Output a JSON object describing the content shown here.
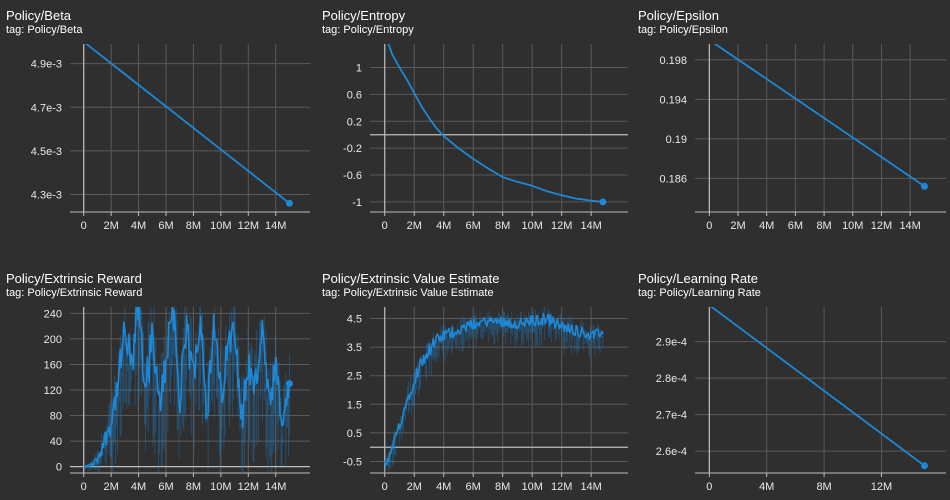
{
  "colors": {
    "background": "#2f2f2f",
    "grid": "#5a5a5a",
    "axis": "#bdbdbd",
    "series": "#1e88d6",
    "text": "#e8e8e8"
  },
  "panels": [
    {
      "title": "Policy/Beta",
      "tag": "tag: Policy/Beta",
      "chart_data": {
        "type": "line",
        "title": "Policy/Beta",
        "xlim": [
          -1000000,
          16500000
        ],
        "ylim": [
          0.00422,
          0.00499
        ],
        "xticks": [
          0,
          2000000,
          4000000,
          6000000,
          8000000,
          10000000,
          12000000,
          14000000
        ],
        "xtick_labels": [
          "0",
          "2M",
          "4M",
          "6M",
          "8M",
          "10M",
          "12M",
          "14M"
        ],
        "yticks": [
          0.0043,
          0.0045,
          0.0047,
          0.0049
        ],
        "ytick_labels": [
          "4.3e-3",
          "4.5e-3",
          "4.7e-3",
          "4.9e-3"
        ],
        "grid": true,
        "zero_line": false,
        "noisy": false,
        "series": [
          {
            "x": [
              0,
              15000000
            ],
            "y": [
              0.005,
              0.00426
            ]
          }
        ],
        "end_marker": true
      }
    },
    {
      "title": "Policy/Entropy",
      "tag": "tag: Policy/Entropy",
      "chart_data": {
        "type": "line",
        "title": "Policy/Entropy",
        "xlim": [
          -1000000,
          16500000
        ],
        "ylim": [
          -1.15,
          1.35
        ],
        "xticks": [
          0,
          2000000,
          4000000,
          6000000,
          8000000,
          10000000,
          12000000,
          14000000
        ],
        "xtick_labels": [
          "0",
          "2M",
          "4M",
          "6M",
          "8M",
          "10M",
          "12M",
          "14M"
        ],
        "yticks": [
          -1,
          -0.6,
          -0.2,
          0.2,
          0.6,
          1
        ],
        "ytick_labels": [
          "-1",
          "-0.6",
          "-0.2",
          "0.2",
          "0.6",
          "1"
        ],
        "grid": true,
        "zero_line": true,
        "noisy": false,
        "series": [
          {
            "x": [
              0,
              250000,
              500000,
              750000,
              1000000,
              1500000,
              2000000,
              2500000,
              3000000,
              3500000,
              4000000,
              5000000,
              6000000,
              7000000,
              8000000,
              9000000,
              10000000,
              11000000,
              12000000,
              13000000,
              14000000,
              14800000
            ],
            "y": [
              1.55,
              1.35,
              1.2,
              1.1,
              1.0,
              0.82,
              0.62,
              0.42,
              0.25,
              0.1,
              -0.02,
              -0.2,
              -0.36,
              -0.5,
              -0.63,
              -0.7,
              -0.76,
              -0.84,
              -0.9,
              -0.95,
              -0.98,
              -1.0
            ]
          }
        ],
        "end_marker": true
      }
    },
    {
      "title": "Policy/Epsilon",
      "tag": "tag: Policy/Epsilon",
      "chart_data": {
        "type": "line",
        "title": "Policy/Epsilon",
        "xlim": [
          -1000000,
          16500000
        ],
        "ylim": [
          0.1826,
          0.1996
        ],
        "xticks": [
          0,
          2000000,
          4000000,
          6000000,
          8000000,
          10000000,
          12000000,
          14000000
        ],
        "xtick_labels": [
          "0",
          "2M",
          "4M",
          "6M",
          "8M",
          "10M",
          "12M",
          "14M"
        ],
        "yticks": [
          0.186,
          0.19,
          0.194,
          0.198
        ],
        "ytick_labels": [
          "0.186",
          "0.19",
          "0.194",
          "0.198"
        ],
        "grid": true,
        "zero_line": false,
        "noisy": false,
        "series": [
          {
            "x": [
              0,
              15000000
            ],
            "y": [
              0.2,
              0.1852
            ]
          }
        ],
        "end_marker": true
      }
    },
    {
      "title": "Policy/Extrinsic Reward",
      "tag": "tag: Policy/Extrinsic Reward",
      "chart_data": {
        "type": "line",
        "title": "Policy/Extrinsic Reward",
        "xlim": [
          -1000000,
          16500000
        ],
        "ylim": [
          -10,
          250
        ],
        "xticks": [
          0,
          2000000,
          4000000,
          6000000,
          8000000,
          10000000,
          12000000,
          14000000
        ],
        "xtick_labels": [
          "0",
          "2M",
          "4M",
          "6M",
          "8M",
          "10M",
          "12M",
          "14M"
        ],
        "yticks": [
          0,
          40,
          80,
          120,
          160,
          200,
          240
        ],
        "ytick_labels": [
          "0",
          "40",
          "80",
          "120",
          "160",
          "200",
          "240"
        ],
        "grid": true,
        "zero_line": true,
        "noisy": true,
        "series": [
          {
            "x": [
              0,
              500000,
              1000000,
              1500000,
              2000000,
              2500000,
              3000000,
              3500000,
              4000000,
              4500000,
              5000000,
              5500000,
              6000000,
              6500000,
              7000000,
              7500000,
              8000000,
              8500000,
              9000000,
              9500000,
              10000000,
              10500000,
              11000000,
              11500000,
              12000000,
              12500000,
              13000000,
              13500000,
              14000000,
              14500000,
              15000000
            ],
            "y": [
              0,
              2,
              10,
              40,
              70,
              130,
              210,
              150,
              260,
              120,
              200,
              90,
              170,
              260,
              100,
              210,
              140,
              250,
              80,
              220,
              110,
              180,
              240,
              70,
              160,
              120,
              220,
              90,
              150,
              60,
              130
            ],
            "spread": [
              3,
              8,
              25,
              45,
              60,
              90,
              110,
              100,
              120,
              110,
              120,
              100,
              110,
              120,
              100,
              110,
              100,
              120,
              100,
              110,
              100,
              100,
              110,
              100,
              100,
              100,
              110,
              100,
              100,
              90,
              80
            ]
          }
        ],
        "end_marker": true
      }
    },
    {
      "title": "Policy/Extrinsic Value Estimate",
      "tag": "tag: Policy/Extrinsic Value Estimate",
      "chart_data": {
        "type": "line",
        "title": "Policy/Extrinsic Value Estimate",
        "xlim": [
          -1000000,
          16500000
        ],
        "ylim": [
          -0.9,
          4.9
        ],
        "xticks": [
          0,
          2000000,
          4000000,
          6000000,
          8000000,
          10000000,
          12000000,
          14000000
        ],
        "xtick_labels": [
          "0",
          "2M",
          "4M",
          "6M",
          "8M",
          "10M",
          "12M",
          "14M"
        ],
        "yticks": [
          -0.5,
          0.5,
          1.5,
          2.5,
          3.5,
          4.5
        ],
        "ytick_labels": [
          "-0.5",
          "0.5",
          "1.5",
          "2.5",
          "3.5",
          "4.5"
        ],
        "grid": true,
        "zero_line": true,
        "noisy": true,
        "series": [
          {
            "x": [
              0,
              300000,
              600000,
              1000000,
              1500000,
              2000000,
              2500000,
              3000000,
              3500000,
              4000000,
              4500000,
              5000000,
              5500000,
              6000000,
              7000000,
              8000000,
              9000000,
              10000000,
              11000000,
              12000000,
              13000000,
              14000000,
              14800000
            ],
            "y": [
              -0.6,
              -0.4,
              0.1,
              0.8,
              1.6,
              2.4,
              3.0,
              3.4,
              3.7,
              3.9,
              4.0,
              4.1,
              4.2,
              4.3,
              4.4,
              4.4,
              4.3,
              4.4,
              4.5,
              4.2,
              4.1,
              3.9,
              4.0
            ],
            "spread": [
              0.4,
              0.5,
              0.6,
              0.7,
              0.8,
              0.8,
              0.8,
              0.8,
              0.8,
              0.7,
              0.7,
              0.6,
              0.6,
              0.6,
              0.6,
              0.6,
              0.6,
              0.7,
              0.7,
              0.7,
              0.7,
              0.6,
              0.5
            ]
          }
        ],
        "end_marker": false
      }
    },
    {
      "title": "Policy/Learning Rate",
      "tag": "tag: Policy/Learning Rate",
      "chart_data": {
        "type": "line",
        "title": "Policy/Learning Rate",
        "xlim": [
          -1000000,
          16500000
        ],
        "ylim": [
          0.000254,
          0.0002995
        ],
        "xticks": [
          0,
          4000000,
          8000000,
          12000000
        ],
        "xtick_labels": [
          "0",
          "4M",
          "8M",
          "12M"
        ],
        "yticks": [
          0.00026,
          0.00027,
          0.00028,
          0.00029
        ],
        "ytick_labels": [
          "2.6e-4",
          "2.7e-4",
          "2.8e-4",
          "2.9e-4"
        ],
        "grid": true,
        "zero_line": false,
        "noisy": false,
        "series": [
          {
            "x": [
              0,
              15000000
            ],
            "y": [
              0.0003,
              0.000256
            ]
          }
        ],
        "end_marker": true
      }
    }
  ]
}
